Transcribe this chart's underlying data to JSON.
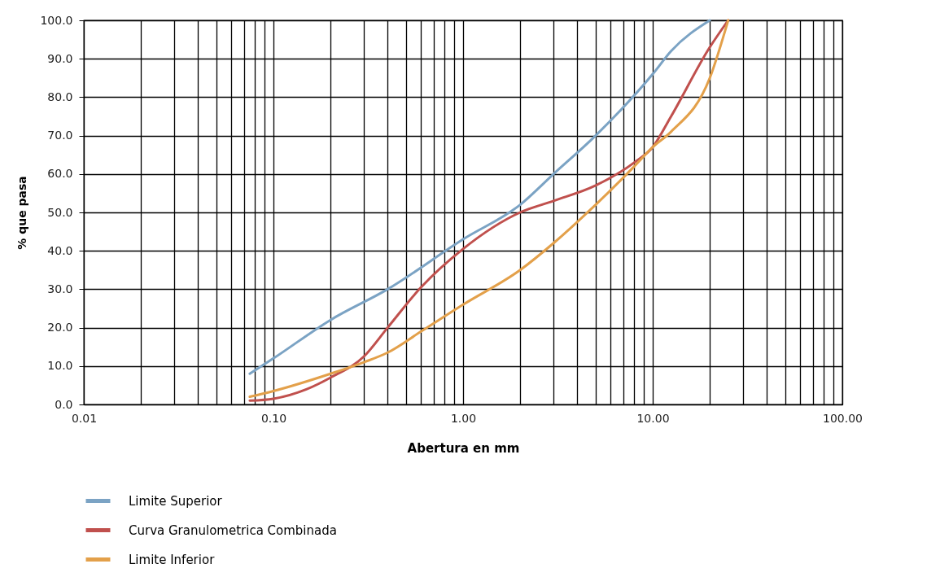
{
  "chart_data": {
    "type": "line",
    "xlabel": "Abertura en mm",
    "ylabel": "% que pasa",
    "log": "x",
    "xlim": [
      0.01,
      100
    ],
    "ylim": [
      0,
      100
    ],
    "xticks": [
      {
        "value": 0.01,
        "label": "0.01"
      },
      {
        "value": 0.02,
        "label": null
      },
      {
        "value": 0.03,
        "label": null
      },
      {
        "value": 0.04,
        "label": null
      },
      {
        "value": 0.05,
        "label": null
      },
      {
        "value": 0.06,
        "label": null
      },
      {
        "value": 0.07,
        "label": null
      },
      {
        "value": 0.08,
        "label": null
      },
      {
        "value": 0.09,
        "label": null
      },
      {
        "value": 0.1,
        "label": "0.10"
      },
      {
        "value": 0.2,
        "label": null
      },
      {
        "value": 0.3,
        "label": null
      },
      {
        "value": 0.4,
        "label": null
      },
      {
        "value": 0.5,
        "label": null
      },
      {
        "value": 0.6,
        "label": null
      },
      {
        "value": 0.7,
        "label": null
      },
      {
        "value": 0.8,
        "label": null
      },
      {
        "value": 0.9,
        "label": null
      },
      {
        "value": 1,
        "label": "1.00"
      },
      {
        "value": 2,
        "label": null
      },
      {
        "value": 3,
        "label": null
      },
      {
        "value": 4,
        "label": null
      },
      {
        "value": 5,
        "label": null
      },
      {
        "value": 6,
        "label": null
      },
      {
        "value": 7,
        "label": null
      },
      {
        "value": 8,
        "label": null
      },
      {
        "value": 9,
        "label": null
      },
      {
        "value": 10,
        "label": "10.00"
      },
      {
        "value": 20,
        "label": null
      },
      {
        "value": 30,
        "label": null
      },
      {
        "value": 40,
        "label": null
      },
      {
        "value": 50,
        "label": null
      },
      {
        "value": 60,
        "label": null
      },
      {
        "value": 70,
        "label": null
      },
      {
        "value": 80,
        "label": null
      },
      {
        "value": 90,
        "label": null
      },
      {
        "value": 100,
        "label": "100.00"
      }
    ],
    "yticks": [
      {
        "value": 0,
        "label": "0.0"
      },
      {
        "value": 10,
        "label": "10.0"
      },
      {
        "value": 20,
        "label": "20.0"
      },
      {
        "value": 30,
        "label": "30.0"
      },
      {
        "value": 40,
        "label": "40.0"
      },
      {
        "value": 50,
        "label": "50.0"
      },
      {
        "value": 60,
        "label": "60.0"
      },
      {
        "value": 70,
        "label": "70.0"
      },
      {
        "value": 80,
        "label": "80.0"
      },
      {
        "value": 90,
        "label": "90.0"
      },
      {
        "value": 100,
        "label": "100.0"
      }
    ],
    "grid": true,
    "legend": "bottom",
    "marker": "none",
    "series": [
      {
        "name": "Limite Superior",
        "color": "#7ba3c4",
        "x": [
          0.075,
          0.1,
          0.2,
          0.4,
          1,
          2,
          3,
          5,
          10,
          12.5,
          20
        ],
        "values": [
          8,
          12,
          22,
          30,
          43,
          52,
          60,
          70,
          86,
          92,
          100
        ]
      },
      {
        "name": "Curva Granulometrica Combinada",
        "color": "#c0504d",
        "x": [
          0.075,
          0.1,
          0.15,
          0.2,
          0.3,
          0.4,
          0.6,
          1,
          2,
          3,
          5,
          8,
          10,
          12.5,
          20,
          25
        ],
        "values": [
          1,
          1.5,
          4,
          7,
          12.5,
          20,
          30.5,
          40.5,
          50,
          53,
          57,
          63,
          67,
          75,
          93,
          100
        ]
      },
      {
        "name": "Limite Inferior",
        "color": "#e3a04a",
        "x": [
          0.075,
          0.1,
          0.2,
          0.3,
          0.4,
          0.6,
          1,
          2,
          3,
          5,
          8,
          10,
          12.5,
          20,
          25
        ],
        "values": [
          2,
          3.5,
          8,
          11,
          13.5,
          19,
          26,
          35,
          42,
          52,
          62,
          67,
          71,
          85,
          100
        ]
      }
    ]
  }
}
